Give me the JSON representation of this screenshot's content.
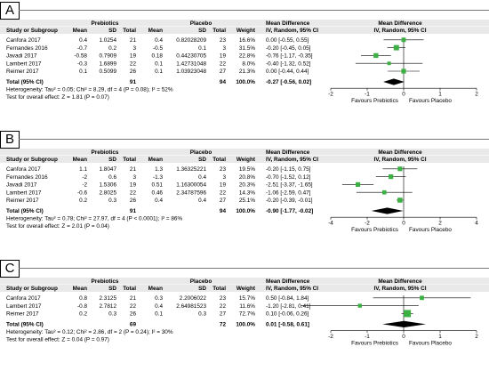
{
  "columns": {
    "group_left": "Prebiotics",
    "group_right": "Placebo",
    "study": "Study or Subgroup",
    "mean": "Mean",
    "sd": "SD",
    "total": "Total",
    "weight": "Weight",
    "md_title": "Mean Difference",
    "md_method": "IV, Random, 95% CI"
  },
  "colors": {
    "square": "#3cb043",
    "diamond": "#000000",
    "header_bg": "#e9e9e9"
  },
  "chart_data": [
    {
      "type": "forest",
      "panel_label": "A",
      "studies": [
        {
          "name": "Canfora 2017",
          "m1": "0.4",
          "sd1": "1.0254",
          "n1": "21",
          "m2": "0.4",
          "sd2": "0.82028209",
          "n2": "23",
          "weight": "16.6%",
          "ci_text": "0.00 [-0.55, 0.55]",
          "md": 0.0,
          "lo": -0.55,
          "hi": 0.55,
          "w": 16.6
        },
        {
          "name": "Fernandes 2016",
          "m1": "-0.7",
          "sd1": "0.2",
          "n1": "3",
          "m2": "-0.5",
          "sd2": "0.1",
          "n2": "3",
          "weight": "31.5%",
          "ci_text": "-0.20 [-0.45, 0.05]",
          "md": -0.2,
          "lo": -0.45,
          "hi": 0.05,
          "w": 31.5
        },
        {
          "name": "Javadi 2017",
          "m1": "-0.58",
          "sd1": "0.7909",
          "n1": "19",
          "m2": "0.18",
          "sd2": "0.44230705",
          "n2": "19",
          "weight": "22.8%",
          "ci_text": "-0.76 [-1.17, -0.35]",
          "md": -0.76,
          "lo": -1.17,
          "hi": -0.35,
          "w": 22.8
        },
        {
          "name": "Lambert 2017",
          "m1": "-0.3",
          "sd1": "1.6899",
          "n1": "22",
          "m2": "0.1",
          "sd2": "1.42731048",
          "n2": "22",
          "weight": "8.0%",
          "ci_text": "-0.40 [-1.32, 0.52]",
          "md": -0.4,
          "lo": -1.32,
          "hi": 0.52,
          "w": 8.0
        },
        {
          "name": "Reimer 2017",
          "m1": "0.1",
          "sd1": "0.5099",
          "n1": "26",
          "m2": "0.1",
          "sd2": "1.03923048",
          "n2": "27",
          "weight": "21.3%",
          "ci_text": "0.00 [-0.44, 0.44]",
          "md": 0.0,
          "lo": -0.44,
          "hi": 0.44,
          "w": 21.3
        }
      ],
      "total": {
        "label": "Total (95% CI)",
        "n1": "91",
        "n2": "94",
        "weight": "100.0%",
        "ci_text": "-0.27 [-0.56, 0.02]",
        "md": -0.27,
        "lo": -0.56,
        "hi": 0.02
      },
      "heterogeneity": "Heterogeneity: Tau² = 0.05; Chi² = 8.29, df = 4 (P = 0.08); I² = 52%",
      "overall_effect": "Test for overall effect: Z = 1.81 (P = 0.07)",
      "xlim": [
        -2,
        2
      ],
      "ticks": [
        -2,
        -1,
        0,
        1,
        2
      ],
      "tick_labels": [
        "-2",
        "-1",
        "0",
        "1",
        "2"
      ],
      "favours_left": "Favours Prebiotics",
      "favours_right": "Favours Placebo"
    },
    {
      "type": "forest",
      "panel_label": "B",
      "studies": [
        {
          "name": "Canfora 2017",
          "m1": "1.1",
          "sd1": "1.8047",
          "n1": "21",
          "m2": "1.3",
          "sd2": "1.36325221",
          "n2": "23",
          "weight": "19.5%",
          "ci_text": "-0.20 [-1.15, 0.75]",
          "md": -0.2,
          "lo": -1.15,
          "hi": 0.75,
          "w": 19.5
        },
        {
          "name": "Fernandes 2016",
          "m1": "-2",
          "sd1": "0.6",
          "n1": "3",
          "m2": "-1.3",
          "sd2": "0.4",
          "n2": "3",
          "weight": "20.8%",
          "ci_text": "-0.70 [-1.52, 0.12]",
          "md": -0.7,
          "lo": -1.52,
          "hi": 0.12,
          "w": 20.8
        },
        {
          "name": "Javadi 2017",
          "m1": "-2",
          "sd1": "1.5306",
          "n1": "19",
          "m2": "0.51",
          "sd2": "1.16300054",
          "n2": "19",
          "weight": "20.3%",
          "ci_text": "-2.51 [-3.37, -1.65]",
          "md": -2.51,
          "lo": -3.37,
          "hi": -1.65,
          "w": 20.3
        },
        {
          "name": "Lambert 2017",
          "m1": "-0.6",
          "sd1": "2.8025",
          "n1": "22",
          "m2": "0.46",
          "sd2": "2.34787596",
          "n2": "22",
          "weight": "14.3%",
          "ci_text": "-1.06 [-2.59, 0.47]",
          "md": -1.06,
          "lo": -2.59,
          "hi": 0.47,
          "w": 14.3
        },
        {
          "name": "Reimer 2017",
          "m1": "0.2",
          "sd1": "0.3",
          "n1": "26",
          "m2": "0.4",
          "sd2": "0.4",
          "n2": "27",
          "weight": "25.1%",
          "ci_text": "-0.20 [-0.39, -0.01]",
          "md": -0.2,
          "lo": -0.39,
          "hi": -0.01,
          "w": 25.1
        }
      ],
      "total": {
        "label": "Total (95% CI)",
        "n1": "91",
        "n2": "94",
        "weight": "100.0%",
        "ci_text": "-0.90 [-1.77, -0.02]",
        "md": -0.9,
        "lo": -1.77,
        "hi": -0.02
      },
      "heterogeneity": "Heterogeneity: Tau² = 0.78; Chi² = 27.97, df = 4 (P < 0.0001); I² = 86%",
      "overall_effect": "Test for overall effect: Z = 2.01 (P = 0.04)",
      "xlim": [
        -4,
        4
      ],
      "ticks": [
        -4,
        -2,
        0,
        2,
        4
      ],
      "tick_labels": [
        "-4",
        "-2",
        "0",
        "2",
        "4"
      ],
      "favours_left": "Favours Prebiotics",
      "favours_right": "Favours Placebo"
    },
    {
      "type": "forest",
      "panel_label": "C",
      "studies": [
        {
          "name": "Canfora 2017",
          "m1": "0.8",
          "sd1": "2.3125",
          "n1": "21",
          "m2": "0.3",
          "sd2": "2.2006022",
          "n2": "23",
          "weight": "15.7%",
          "ci_text": "0.50 [-0.84, 1.84]",
          "md": 0.5,
          "lo": -0.84,
          "hi": 1.84,
          "w": 15.7
        },
        {
          "name": "Lambert 2017",
          "m1": "-0.8",
          "sd1": "2.7812",
          "n1": "22",
          "m2": "0.4",
          "sd2": "2.64981523",
          "n2": "22",
          "weight": "11.6%",
          "ci_text": "-1.20 [-2.81, 0.41]",
          "md": -1.2,
          "lo": -2.81,
          "hi": 0.41,
          "w": 11.6
        },
        {
          "name": "Reimer 2017",
          "m1": "0.2",
          "sd1": "0.3",
          "n1": "26",
          "m2": "0.1",
          "sd2": "0.3",
          "n2": "27",
          "weight": "72.7%",
          "ci_text": "0.10 [-0.06, 0.26]",
          "md": 0.1,
          "lo": -0.06,
          "hi": 0.26,
          "w": 72.7
        }
      ],
      "total": {
        "label": "Total (95% CI)",
        "n1": "69",
        "n2": "72",
        "weight": "100.0%",
        "ci_text": "0.01 [-0.58, 0.61]",
        "md": 0.01,
        "lo": -0.58,
        "hi": 0.61
      },
      "heterogeneity": "Heterogeneity: Tau² = 0.12; Chi² = 2.86, df = 2 (P = 0.24); I² = 30%",
      "overall_effect": "Test for overall effect: Z = 0.04 (P = 0.97)",
      "xlim": [
        -2,
        2
      ],
      "ticks": [
        -2,
        -1,
        0,
        1,
        2
      ],
      "tick_labels": [
        "-2",
        "-1",
        "0",
        "1",
        "2"
      ],
      "favours_left": "Favours Prebiotics",
      "favours_right": "Favours Placebo"
    }
  ]
}
